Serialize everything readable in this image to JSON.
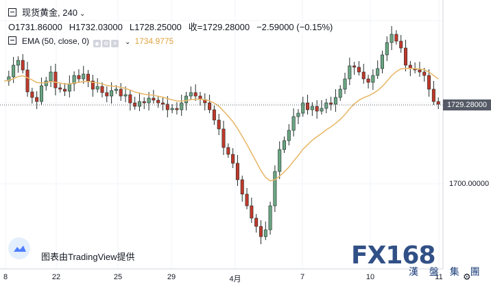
{
  "legend": {
    "symbol": "现货黄金",
    "interval": "240",
    "open": "O1731.86000",
    "high": "H1732.03000",
    "low": "L1728.25000",
    "close": "收=1729.28000",
    "change": "−2.59000 (−0.15%)"
  },
  "indicator": {
    "name": "EMA (50, close, 0)",
    "value": "1734.9775",
    "color": "#e8b86a"
  },
  "price_axis": {
    "current_price": "1729.28000",
    "label": "1700.00000"
  },
  "time_axis": [
    "8",
    "22",
    "25",
    "29",
    "4月",
    "7",
    "10",
    "11"
  ],
  "branding": {
    "tradingview": "图表由TradingView提供",
    "watermark": "FX168",
    "watermark_sub": "漢 盤 集 團"
  },
  "icons": [
    "hide-icon",
    "chevron-down-icon",
    "eye-icon",
    "settings-icon",
    "close-icon",
    "tradingview-logo-icon",
    "gear-icon"
  ],
  "colors": {
    "up": "#26a69a",
    "down": "#ef5350",
    "up_body": "#6aa582",
    "down_body": "#c0392b",
    "ema": "#e8b86a"
  }
}
